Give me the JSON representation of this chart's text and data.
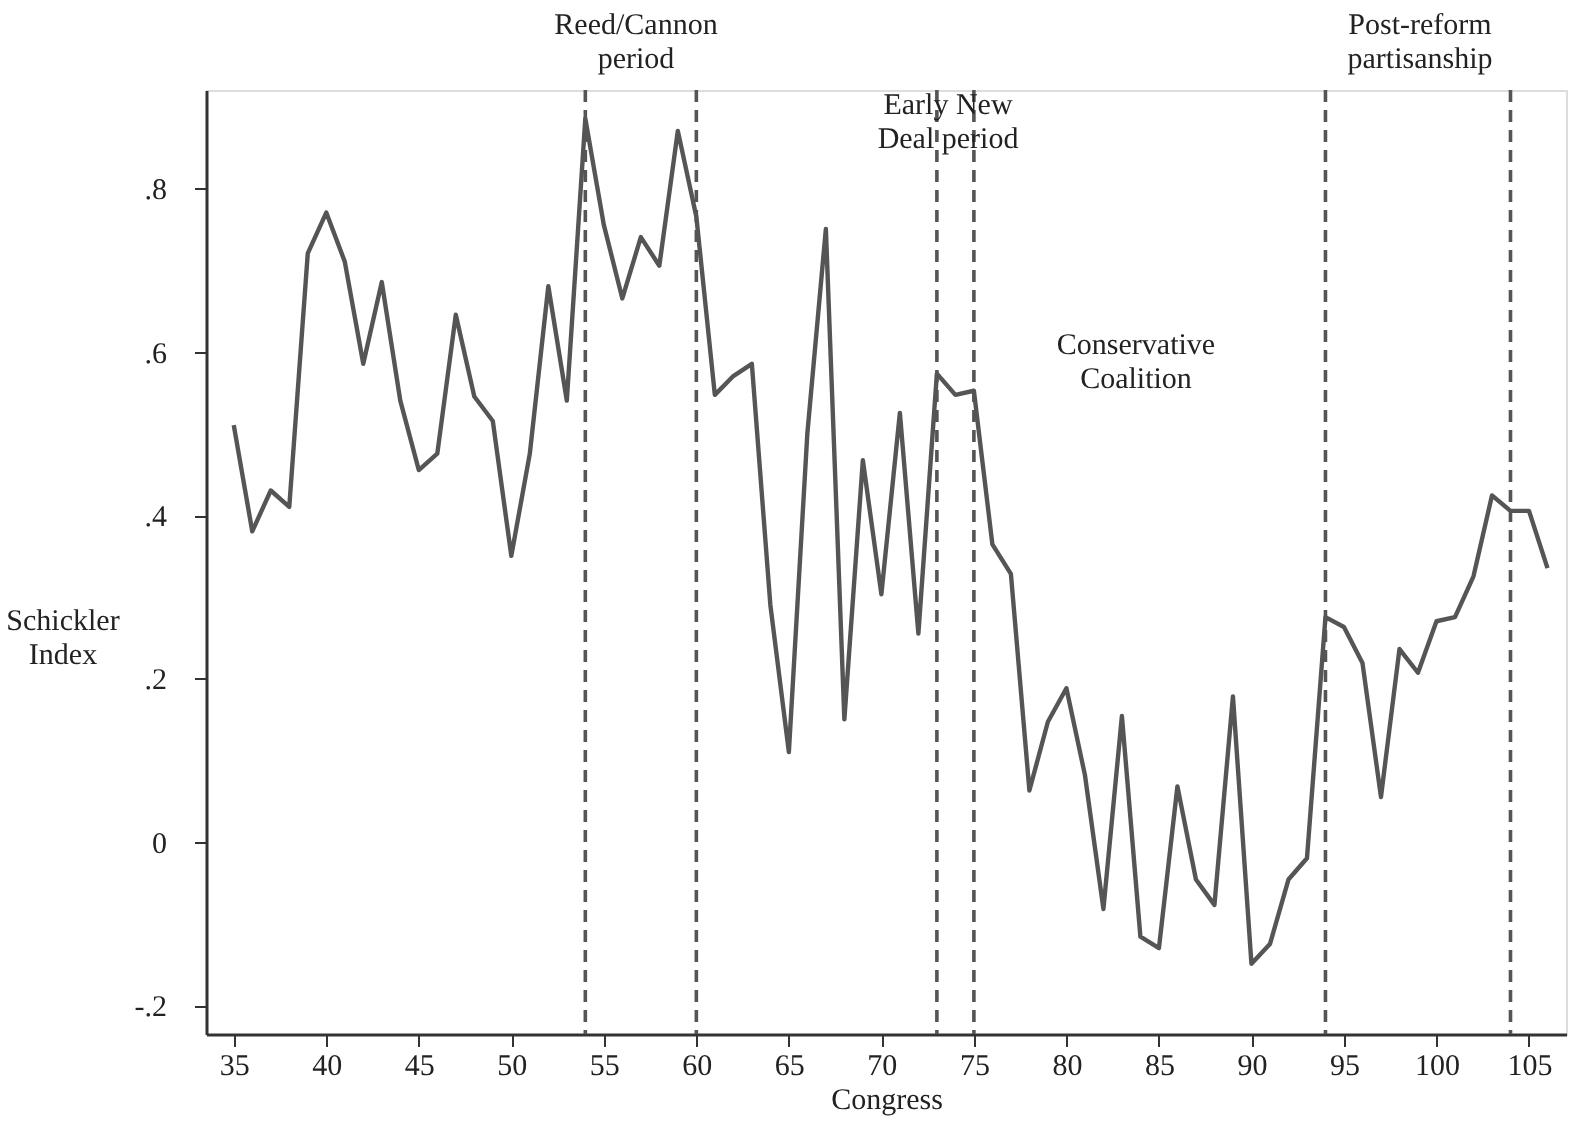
{
  "chart_data": {
    "type": "line",
    "xlabel": "Congress",
    "ylabel": "Schickler Index",
    "x": [
      35,
      36,
      37,
      38,
      39,
      40,
      41,
      42,
      43,
      44,
      45,
      46,
      47,
      48,
      49,
      50,
      51,
      52,
      53,
      54,
      55,
      56,
      57,
      58,
      59,
      60,
      61,
      62,
      63,
      64,
      65,
      66,
      67,
      68,
      69,
      70,
      71,
      72,
      73,
      74,
      75,
      76,
      77,
      78,
      79,
      80,
      81,
      82,
      83,
      84,
      85,
      86,
      87,
      88,
      89,
      90,
      91,
      92,
      93,
      94,
      95,
      96,
      97,
      98,
      99,
      100,
      101,
      102,
      103,
      104,
      105,
      106
    ],
    "series": [
      {
        "color": "#555555",
        "values": [
          0.51,
          0.38,
          0.43,
          0.41,
          0.72,
          0.77,
          0.71,
          0.585,
          0.685,
          0.54,
          0.455,
          0.475,
          0.645,
          0.545,
          0.515,
          0.35,
          0.475,
          0.68,
          0.54,
          0.885,
          0.755,
          0.665,
          0.74,
          0.705,
          0.87,
          0.765,
          0.547,
          0.57,
          0.585,
          0.29,
          0.11,
          0.5,
          0.75,
          0.15,
          0.467,
          0.303,
          0.525,
          0.255,
          0.573,
          0.547,
          0.552,
          0.364,
          0.328,
          0.063,
          0.147,
          0.188,
          0.082,
          -0.082,
          0.154,
          -0.116,
          -0.13,
          0.068,
          -0.046,
          -0.077,
          0.178,
          -0.149,
          -0.125,
          -0.046,
          -0.02,
          0.275,
          0.263,
          0.219,
          0.055,
          0.236,
          0.207,
          0.27,
          0.275,
          0.325,
          0.424,
          0.405,
          0.405,
          0.335
        ]
      }
    ],
    "xlim": [
      33.5,
      107
    ],
    "xticks": [
      35,
      40,
      45,
      50,
      55,
      60,
      65,
      70,
      75,
      80,
      85,
      90,
      95,
      100,
      105
    ],
    "ylim": [
      -0.235,
      0.92
    ],
    "yticks": [
      {
        "value": -0.2,
        "label": "-.2"
      },
      0,
      {
        "value": 0.2,
        "label": ".2"
      },
      {
        "value": 0.4,
        "label": ".4"
      },
      {
        "value": 0.6,
        "label": ".6"
      },
      {
        "value": 0.8,
        "label": ".8"
      }
    ],
    "ref_lines": [
      {
        "axis": "x",
        "value": 54,
        "color": "#555555",
        "line_style": "dashed"
      },
      {
        "axis": "x",
        "value": 60,
        "color": "#555555",
        "line_style": "dashed"
      },
      {
        "axis": "x",
        "value": 73,
        "color": "#555555",
        "line_style": "dashed"
      },
      {
        "axis": "x",
        "value": 75,
        "color": "#555555",
        "line_style": "dashed"
      },
      {
        "axis": "x",
        "value": 94,
        "color": "#555555",
        "line_style": "dashed"
      },
      {
        "axis": "x",
        "value": 104,
        "color": "#555555",
        "line_style": "dashed"
      }
    ],
    "annotations": [
      "Reed/Cannon\nperiod",
      "Early New\nDeal period",
      "Conservative\nCoalition",
      "Post-reform\npartisanship"
    ],
    "grid": false,
    "marker": "none",
    "line_style": "solid"
  }
}
